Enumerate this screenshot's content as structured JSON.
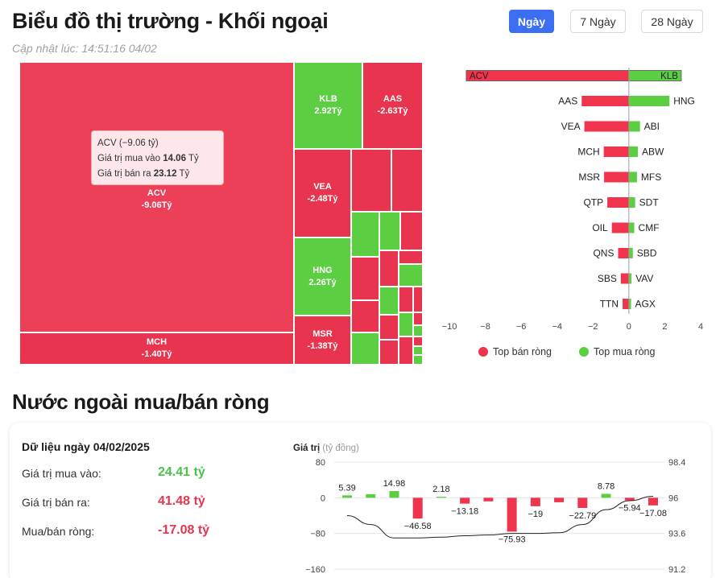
{
  "header": {
    "title": "Biểu đồ thị trường - Khối ngoại",
    "updated": "Cập nhật lúc: 14:51:16 04/02",
    "tabs": [
      {
        "label": "Ngày",
        "active": true
      },
      {
        "label": "7 Ngày",
        "active": false
      },
      {
        "label": "28 Ngày",
        "active": false
      }
    ]
  },
  "colors": {
    "sell": "#f0344e",
    "buy": "#5cce42",
    "accent": "#3b6ef0",
    "treemap_sell": "#e8344f",
    "treemap_big": "#ec3f58"
  },
  "treemap": {
    "unit": "Tỷ",
    "labeled": [
      {
        "code": "ACV",
        "value": "-9.06Tỷ"
      },
      {
        "code": "KLB",
        "value": "2.92Tỷ"
      },
      {
        "code": "AAS",
        "value": "-2.63Tỷ"
      },
      {
        "code": "VEA",
        "value": "-2.48Tỷ"
      },
      {
        "code": "HNG",
        "value": "2.26Tỷ"
      },
      {
        "code": "MCH",
        "value": "-1.40Tỷ"
      },
      {
        "code": "MSR",
        "value": "-1.38Tỷ"
      }
    ],
    "tooltip": {
      "line1": "ACV (−9.06 tỷ)",
      "buy_label": "Giá trị mua vào",
      "buy_value": "14.06",
      "sell_label": "Giá trị bán ra",
      "sell_value": "23.12",
      "unit": "Tỷ"
    }
  },
  "top_chart": {
    "type": "bar",
    "sell_label": "Top bán ròng",
    "buy_label": "Top mua ròng",
    "xlim": [
      -10,
      4
    ],
    "xticks": [
      "−10",
      "−8",
      "−6",
      "−4",
      "−2",
      "0",
      "2",
      "4"
    ],
    "rows": [
      {
        "sell": "ACV",
        "sell_value": -9.06,
        "buy": "KLB",
        "buy_value": 2.92
      },
      {
        "sell": "AAS",
        "sell_value": -2.63,
        "buy": "HNG",
        "buy_value": 2.26
      },
      {
        "sell": "VEA",
        "sell_value": -2.48,
        "buy": "ABI",
        "buy_value": 0.62
      },
      {
        "sell": "MCH",
        "sell_value": -1.4,
        "buy": "ABW",
        "buy_value": 0.5
      },
      {
        "sell": "MSR",
        "sell_value": -1.38,
        "buy": "MFS",
        "buy_value": 0.45
      },
      {
        "sell": "QTP",
        "sell_value": -1.2,
        "buy": "SDT",
        "buy_value": 0.35
      },
      {
        "sell": "OIL",
        "sell_value": -0.95,
        "buy": "CMF",
        "buy_value": 0.3
      },
      {
        "sell": "QNS",
        "sell_value": -0.6,
        "buy": "SBD",
        "buy_value": 0.22
      },
      {
        "sell": "SBS",
        "sell_value": -0.45,
        "buy": "VAV",
        "buy_value": 0.15
      },
      {
        "sell": "TTN",
        "sell_value": -0.35,
        "buy": "AGX",
        "buy_value": 0.12
      }
    ]
  },
  "net_section": {
    "title": "Nước ngoài mua/bán ròng",
    "date_label": "Dữ liệu ngày 04/02/2025",
    "buy_label": "Giá trị mua vào:",
    "buy_value": "24.41 tỷ",
    "sell_label": "Giá trị bán ra:",
    "sell_value": "41.48 tỷ",
    "net_label": "Mua/bán ròng:",
    "net_value": "-17.08 tỷ"
  },
  "chart_data": {
    "type": "bar",
    "ylabel": "Giá trị",
    "ylabel_unit": "(tỷ đồng)",
    "ylim": [
      -160,
      80
    ],
    "yticks": [
      "80",
      "0",
      "−80",
      "−160"
    ],
    "y2lim": [
      91.2,
      98.4
    ],
    "y2ticks": [
      "98.4",
      "96",
      "93.6",
      "91.2"
    ],
    "values": [
      5.39,
      8,
      14.98,
      -46.58,
      2.18,
      -13.18,
      -8,
      -75.93,
      -19,
      -10,
      -22.79,
      8.78,
      -5.94,
      -17.08
    ],
    "labels": [
      "5.39",
      "",
      "14.98",
      "−46.58",
      "2.18",
      "−13.18",
      "",
      "−75.93",
      "−19",
      "",
      "−22.79",
      "8.78",
      "−5.94",
      "−17.08"
    ],
    "line": [
      94.8,
      94.2,
      93.3,
      93.3,
      93.35,
      93.45,
      93.5,
      93.6,
      93.6,
      93.65,
      94.2,
      95.2,
      95.8,
      96.1
    ]
  }
}
